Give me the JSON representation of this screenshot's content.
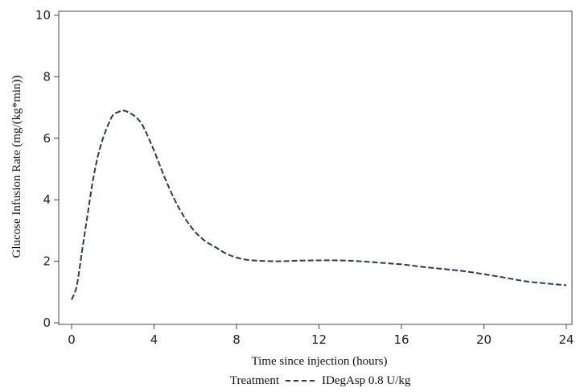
{
  "chart_data": {
    "type": "line",
    "xlabel": "Time since injection (hours)",
    "ylabel": "Glucose Infusion Rate (mg/(kg*min))",
    "xlim": [
      0,
      24
    ],
    "ylim": [
      0,
      10
    ],
    "x_ticks": [
      0,
      4,
      8,
      12,
      16,
      20,
      24
    ],
    "y_ticks": [
      0,
      2,
      4,
      6,
      8,
      10
    ],
    "grid": false,
    "legend": {
      "title": "Treatment",
      "placement": "bottom",
      "entries": [
        "IDegAsp 0.8 U/kg"
      ]
    },
    "series": [
      {
        "name": "IDegAsp 0.8 U/kg",
        "color": "#2b3a55",
        "line_style": "dashed",
        "x": [
          0,
          0.25,
          0.5,
          0.75,
          1,
          1.25,
          1.5,
          1.75,
          2,
          2.25,
          2.5,
          2.75,
          3,
          3.25,
          3.5,
          4,
          4.5,
          5,
          5.5,
          6,
          6.5,
          7,
          7.5,
          8,
          8.5,
          9,
          10,
          11,
          12,
          13,
          14,
          15,
          16,
          17,
          18,
          19,
          20,
          21,
          22,
          23,
          24
        ],
        "values": [
          0.75,
          1.2,
          2.3,
          3.4,
          4.5,
          5.35,
          5.95,
          6.4,
          6.75,
          6.85,
          6.9,
          6.85,
          6.75,
          6.6,
          6.35,
          5.6,
          4.75,
          4.0,
          3.4,
          2.95,
          2.65,
          2.45,
          2.25,
          2.12,
          2.05,
          2.02,
          2.0,
          2.02,
          2.03,
          2.03,
          2.0,
          1.95,
          1.9,
          1.82,
          1.75,
          1.68,
          1.58,
          1.47,
          1.35,
          1.28,
          1.22
        ]
      }
    ]
  }
}
